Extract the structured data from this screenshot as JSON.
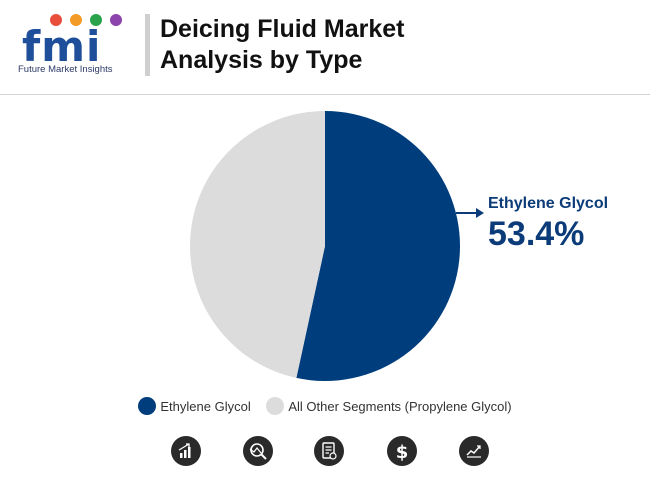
{
  "logo": {
    "letters": "fmi",
    "caption": "Future Market Insights",
    "dot_colors": [
      "#e94e3c",
      "#f29b26",
      "#2ba24c",
      "#8e44ad"
    ]
  },
  "title": {
    "line1": "Deicing Fluid Market",
    "line2": "Analysis by Type"
  },
  "chart_data": {
    "type": "pie",
    "categories": [
      "Ethylene Glycol",
      "All Other Segments (Propylene Glycol)"
    ],
    "values": [
      53.4,
      46.6
    ],
    "colors": [
      "#003d7c",
      "#dcdcdc"
    ],
    "legend_position": "bottom",
    "callout": {
      "label": "Ethylene Glycol",
      "value": "53.4%"
    }
  },
  "footer_icons": [
    "bar-chart-growth-icon",
    "magnifier-chart-icon",
    "document-report-icon",
    "dollar-icon",
    "line-chart-icon"
  ]
}
